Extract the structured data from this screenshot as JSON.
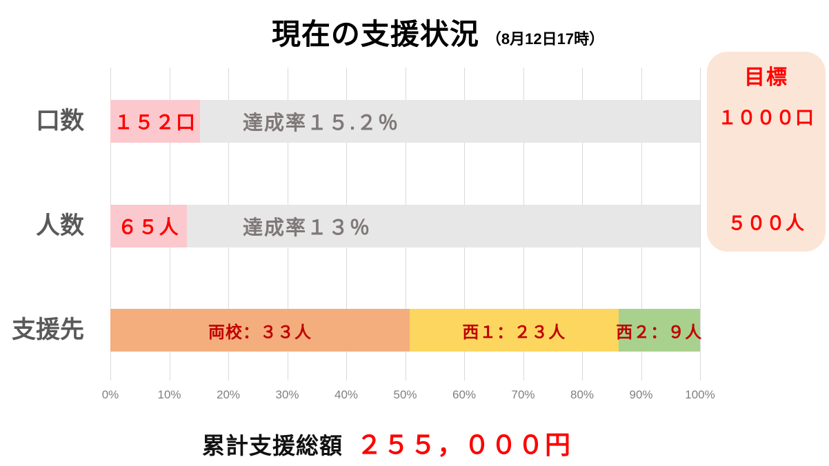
{
  "title": {
    "main": "現在の支援状況",
    "sub": "（8月12日17時）"
  },
  "goal_box": {
    "heading": "目標",
    "units_goal": "１０００口",
    "people_goal": "５００人"
  },
  "footer": {
    "label": "累計支援総額",
    "amount": "２５５，０００円"
  },
  "colors": {
    "progress_fill": "#FBC9CD",
    "track": "#E8E7E7",
    "value_red": "#FF0000",
    "rate_gray": "#7F7878",
    "category_gray": "#595959",
    "gridline": "#D9D9D9",
    "goal_box_bg": "#FBE5D7",
    "segment_label_red": "#C00000"
  },
  "chart_data": {
    "type": "bar",
    "orientation": "horizontal",
    "title": "現在の支援状況（8月12日17時）",
    "x_axis": {
      "min": 0,
      "max": 100,
      "unit": "%",
      "grid": true,
      "ticks": [
        "0%",
        "10%",
        "20%",
        "30%",
        "40%",
        "50%",
        "60%",
        "70%",
        "80%",
        "90%",
        "100%"
      ]
    },
    "rows": [
      {
        "category": "口数",
        "value": 152,
        "goal": 1000,
        "percent": 15.2,
        "bar_label": "１５２口",
        "rate_label": "達成率１５.２％",
        "bar_color": "#FBC9CD",
        "track_color": "#E8E7E7"
      },
      {
        "category": "人数",
        "value": 65,
        "goal": 500,
        "percent": 13,
        "bar_label": "６５人",
        "rate_label": "達成率１３％",
        "bar_color": "#FBC9CD",
        "track_color": "#E8E7E7"
      },
      {
        "category": "支援先",
        "stacked": true,
        "total_people": 65,
        "segments": [
          {
            "name": "両校",
            "value": 33,
            "label": "両校：３３人",
            "percent": 50.77,
            "color": "#F4AE7E"
          },
          {
            "name": "西1",
            "value": 23,
            "label": "西１：２３人",
            "percent": 35.38,
            "color": "#FCD65F"
          },
          {
            "name": "西2",
            "value": 9,
            "label": "西２：９人",
            "percent": 13.85,
            "color": "#A9D18E"
          }
        ]
      }
    ],
    "goal": {
      "units": 1000,
      "people": 500
    },
    "total_amount_yen": 255000,
    "legend": false
  }
}
